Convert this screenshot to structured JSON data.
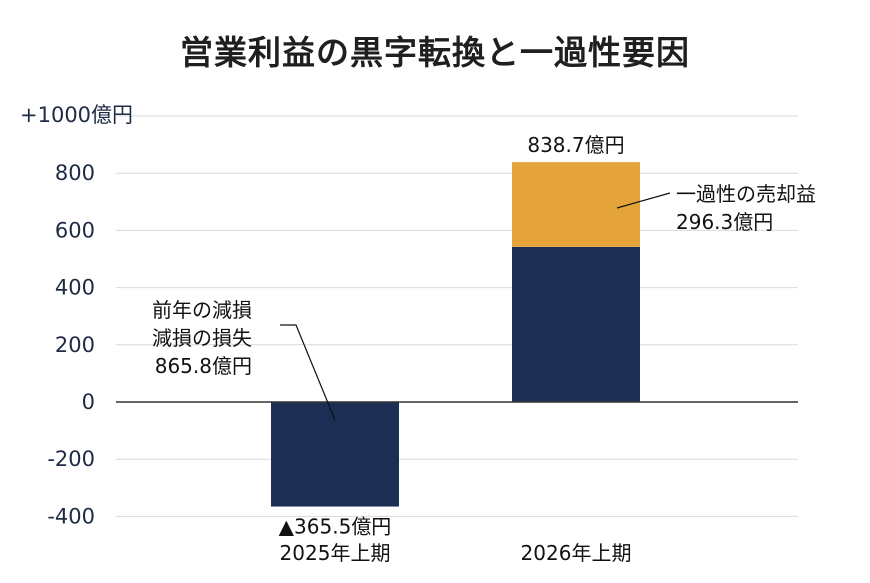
{
  "chart_data": {
    "type": "bar",
    "stacked": true,
    "title": "営業利益の黒字転換と一過性要因",
    "unit_label": "+1000億円",
    "y_ticks": [
      "800",
      "600",
      "400",
      "200",
      "0",
      "-200",
      "-400"
    ],
    "ylim": [
      -400,
      1000
    ],
    "grid": true,
    "categories": [
      "2025年上期",
      "2026年上期"
    ],
    "series": [
      {
        "values": [
          -365.5,
          542.4
        ],
        "color": "#1c2e54"
      },
      {
        "values": [
          0,
          296.3
        ],
        "color": "#e4a43a"
      }
    ],
    "data_labels": [
      "▲365.5億円",
      "838.7億円"
    ],
    "annotations": {
      "left_line1": "前年の減損",
      "left_line2": "減損の損失",
      "left_line3": "865.8億円",
      "right_line1": "一過性の売却益",
      "right_line2": "296.3億円"
    }
  }
}
